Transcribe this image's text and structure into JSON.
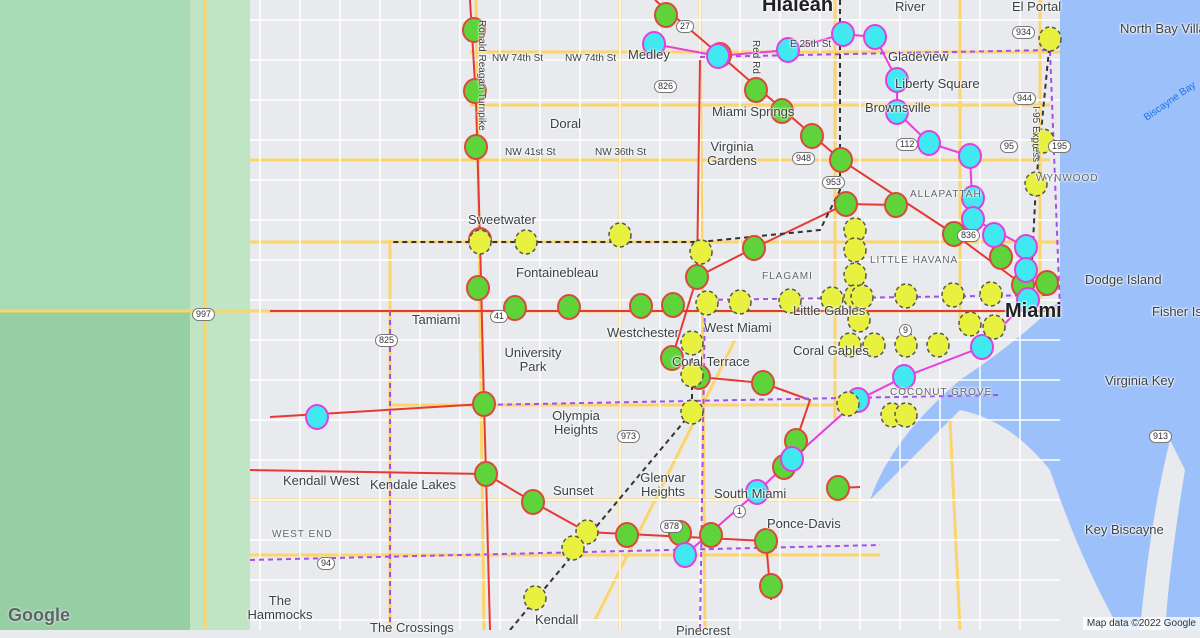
{
  "map": {
    "places": [
      "Hialeah",
      "River",
      "El Portal",
      "North Bay Village",
      "Medley",
      "Gladeview",
      "Liberty Square",
      "Brownsville",
      "Miami Springs",
      "Virginia Gardens",
      "Doral",
      "WYNWOOD",
      "ALLAPATTAH",
      "Sweetwater",
      "Fontainebleau",
      "LITTLE HAVANA",
      "FLAGAMI",
      "Dodge Island",
      "Miami",
      "Fisher Is",
      "Tamiami",
      "Westchester",
      "West Miami",
      "Little Gables",
      "Coral Gables",
      "University Park",
      "Coral Terrace",
      "Virginia Key",
      "Olympia Heights",
      "Kendall West",
      "Kendale Lakes",
      "Sunset",
      "Glenvar Heights",
      "South Miami",
      "Ponce-Davis",
      "Key Biscayne",
      "WEST END",
      "The Hammocks",
      "Kendall",
      "The Crossings",
      "Pinecrest",
      "COCONUT GROVE",
      "Biscayne Bay"
    ],
    "streets": [
      "NW 74th St",
      "NW 74th St",
      "NW 41st St",
      "NW 36th St",
      "E 25th St",
      "Red Rd",
      "I-95 Express",
      "Ronald Reagan Turnpike"
    ],
    "shields": [
      "27",
      "826",
      "948",
      "953",
      "112",
      "934",
      "944",
      "195",
      "836",
      "41",
      "997",
      "825",
      "973",
      "878",
      "94",
      "9",
      "913",
      "1",
      "95"
    ],
    "marker_colors": {
      "green": "#5fd43a",
      "cyan": "#40e8f0",
      "yellow": "#e8f040"
    },
    "route_colors": {
      "red": "#e53935",
      "magenta": "#ea3de0",
      "purple": "#a64df0",
      "black": "#333333"
    },
    "logo": "Google",
    "attribution": "Map data ©2022 Google"
  }
}
